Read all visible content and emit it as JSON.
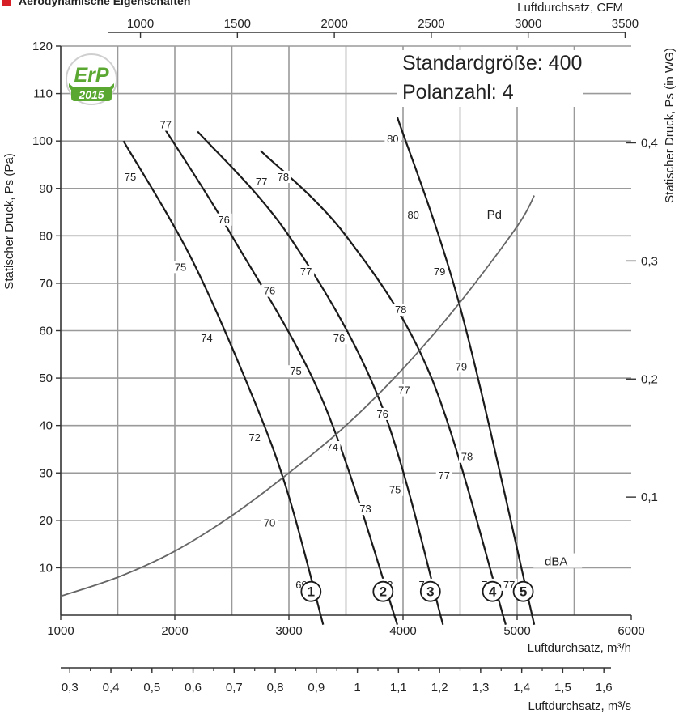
{
  "title": "Aerodynamische Eigenschaften",
  "info": {
    "line1": "Standardgröße: 400",
    "line2": "Polanzahl: 4"
  },
  "badge": {
    "text": "ErP",
    "year": "2015",
    "color": "#5aa832"
  },
  "colors": {
    "accent": "#d61f26",
    "grid": "#9a9a9a",
    "curve": "#1a1a1a",
    "pd_curve": "#666666"
  },
  "chart_data": {
    "type": "line",
    "x_bottom": {
      "label": "Luftdurchsatz, m³/h",
      "range": [
        1000,
        6000
      ],
      "ticks": [
        1000,
        2000,
        3000,
        4000,
        5000,
        6000
      ]
    },
    "x_top": {
      "label": "Luftdurchsatz, CFM",
      "ticks": [
        1000,
        1500,
        2000,
        2500,
        3000,
        3500
      ]
    },
    "x_ms": {
      "label": "Luftdurchsatz, m³/s",
      "ticks": [
        "0,3",
        "0,4",
        "0,5",
        "0,6",
        "0,7",
        "0,8",
        "0,9",
        "1",
        "1,1",
        "1,2",
        "1,3",
        "1,4",
        "1,5",
        "1,6"
      ]
    },
    "y_left": {
      "label": "Statischer Druck, Ps (Pa)",
      "range": [
        0,
        120
      ],
      "ticks": [
        10,
        20,
        30,
        40,
        50,
        60,
        70,
        80,
        90,
        100,
        110,
        120
      ]
    },
    "y_right": {
      "label": "Statischer Druck, Ps (in WG)",
      "ticks": [
        {
          "label": "0,1",
          "pa": 24.9
        },
        {
          "label": "0,2",
          "pa": 49.8
        },
        {
          "label": "0,3",
          "pa": 74.7
        },
        {
          "label": "0,4",
          "pa": 99.6
        }
      ]
    },
    "grid": true,
    "series": [
      {
        "name": "1",
        "points": [
          [
            1550,
            100
          ],
          [
            2150,
            75
          ],
          [
            2700,
            45
          ],
          [
            3000,
            25
          ],
          [
            3300,
            -2
          ]
        ],
        "labels": [
          {
            "text": "75",
            "x": 1610,
            "y": 92
          },
          {
            "text": "75",
            "x": 2050,
            "y": 73
          },
          {
            "text": "74",
            "x": 2280,
            "y": 58
          },
          {
            "text": "72",
            "x": 2700,
            "y": 37
          },
          {
            "text": "70",
            "x": 2830,
            "y": 19
          },
          {
            "text": "69",
            "x": 3110,
            "y": 6
          }
        ]
      },
      {
        "name": "2",
        "points": [
          [
            1900,
            103
          ],
          [
            2500,
            80
          ],
          [
            3300,
            45
          ],
          [
            3950,
            -2
          ]
        ],
        "labels": [
          {
            "text": "77",
            "x": 1920,
            "y": 103
          },
          {
            "text": "76",
            "x": 2430,
            "y": 83
          },
          {
            "text": "76",
            "x": 2830,
            "y": 68
          },
          {
            "text": "75",
            "x": 3060,
            "y": 51
          },
          {
            "text": "74",
            "x": 3380,
            "y": 35
          },
          {
            "text": "73",
            "x": 3670,
            "y": 22
          },
          {
            "text": "72",
            "x": 3860,
            "y": 6
          }
        ]
      },
      {
        "name": "3",
        "points": [
          [
            2200,
            102
          ],
          [
            3000,
            80
          ],
          [
            3800,
            45
          ],
          [
            4350,
            -2
          ]
        ],
        "labels": [
          {
            "text": "77",
            "x": 2760,
            "y": 91
          },
          {
            "text": "77",
            "x": 3150,
            "y": 72
          },
          {
            "text": "76",
            "x": 3440,
            "y": 58
          },
          {
            "text": "76",
            "x": 3820,
            "y": 42
          },
          {
            "text": "75",
            "x": 3930,
            "y": 26
          },
          {
            "text": "74",
            "x": 4190,
            "y": 6
          }
        ]
      },
      {
        "name": "4",
        "points": [
          [
            2750,
            98
          ],
          [
            3500,
            80
          ],
          [
            4250,
            50
          ],
          [
            4900,
            -2
          ]
        ],
        "labels": [
          {
            "text": "78",
            "x": 2950,
            "y": 92
          },
          {
            "text": "78",
            "x": 3980,
            "y": 64
          },
          {
            "text": "77",
            "x": 4010,
            "y": 47
          },
          {
            "text": "77",
            "x": 4360,
            "y": 29
          },
          {
            "text": "76",
            "x": 4740,
            "y": 6
          }
        ]
      },
      {
        "name": "5",
        "points": [
          [
            3950,
            105
          ],
          [
            4500,
            65
          ],
          [
            5150,
            -2
          ]
        ],
        "labels": [
          {
            "text": "80",
            "x": 3910,
            "y": 100
          },
          {
            "text": "80",
            "x": 4090,
            "y": 84
          },
          {
            "text": "79",
            "x": 4320,
            "y": 72
          },
          {
            "text": "79",
            "x": 4510,
            "y": 52
          },
          {
            "text": "78",
            "x": 4560,
            "y": 33
          },
          {
            "text": "77",
            "x": 4930,
            "y": 6
          }
        ]
      },
      {
        "name": "Pd",
        "points": [
          [
            1000,
            4
          ],
          [
            1500,
            8
          ],
          [
            2000,
            13.5
          ],
          [
            2500,
            21
          ],
          [
            3000,
            30
          ],
          [
            3500,
            40
          ],
          [
            4000,
            52
          ],
          [
            4500,
            66
          ],
          [
            5000,
            82
          ],
          [
            5150,
            88.5
          ]
        ],
        "labels": [
          {
            "text": "Pd",
            "x": 4800,
            "y": 84
          }
        ]
      }
    ],
    "annotations": [
      {
        "text": "dBA",
        "x": 5200,
        "y": 11
      }
    ]
  }
}
